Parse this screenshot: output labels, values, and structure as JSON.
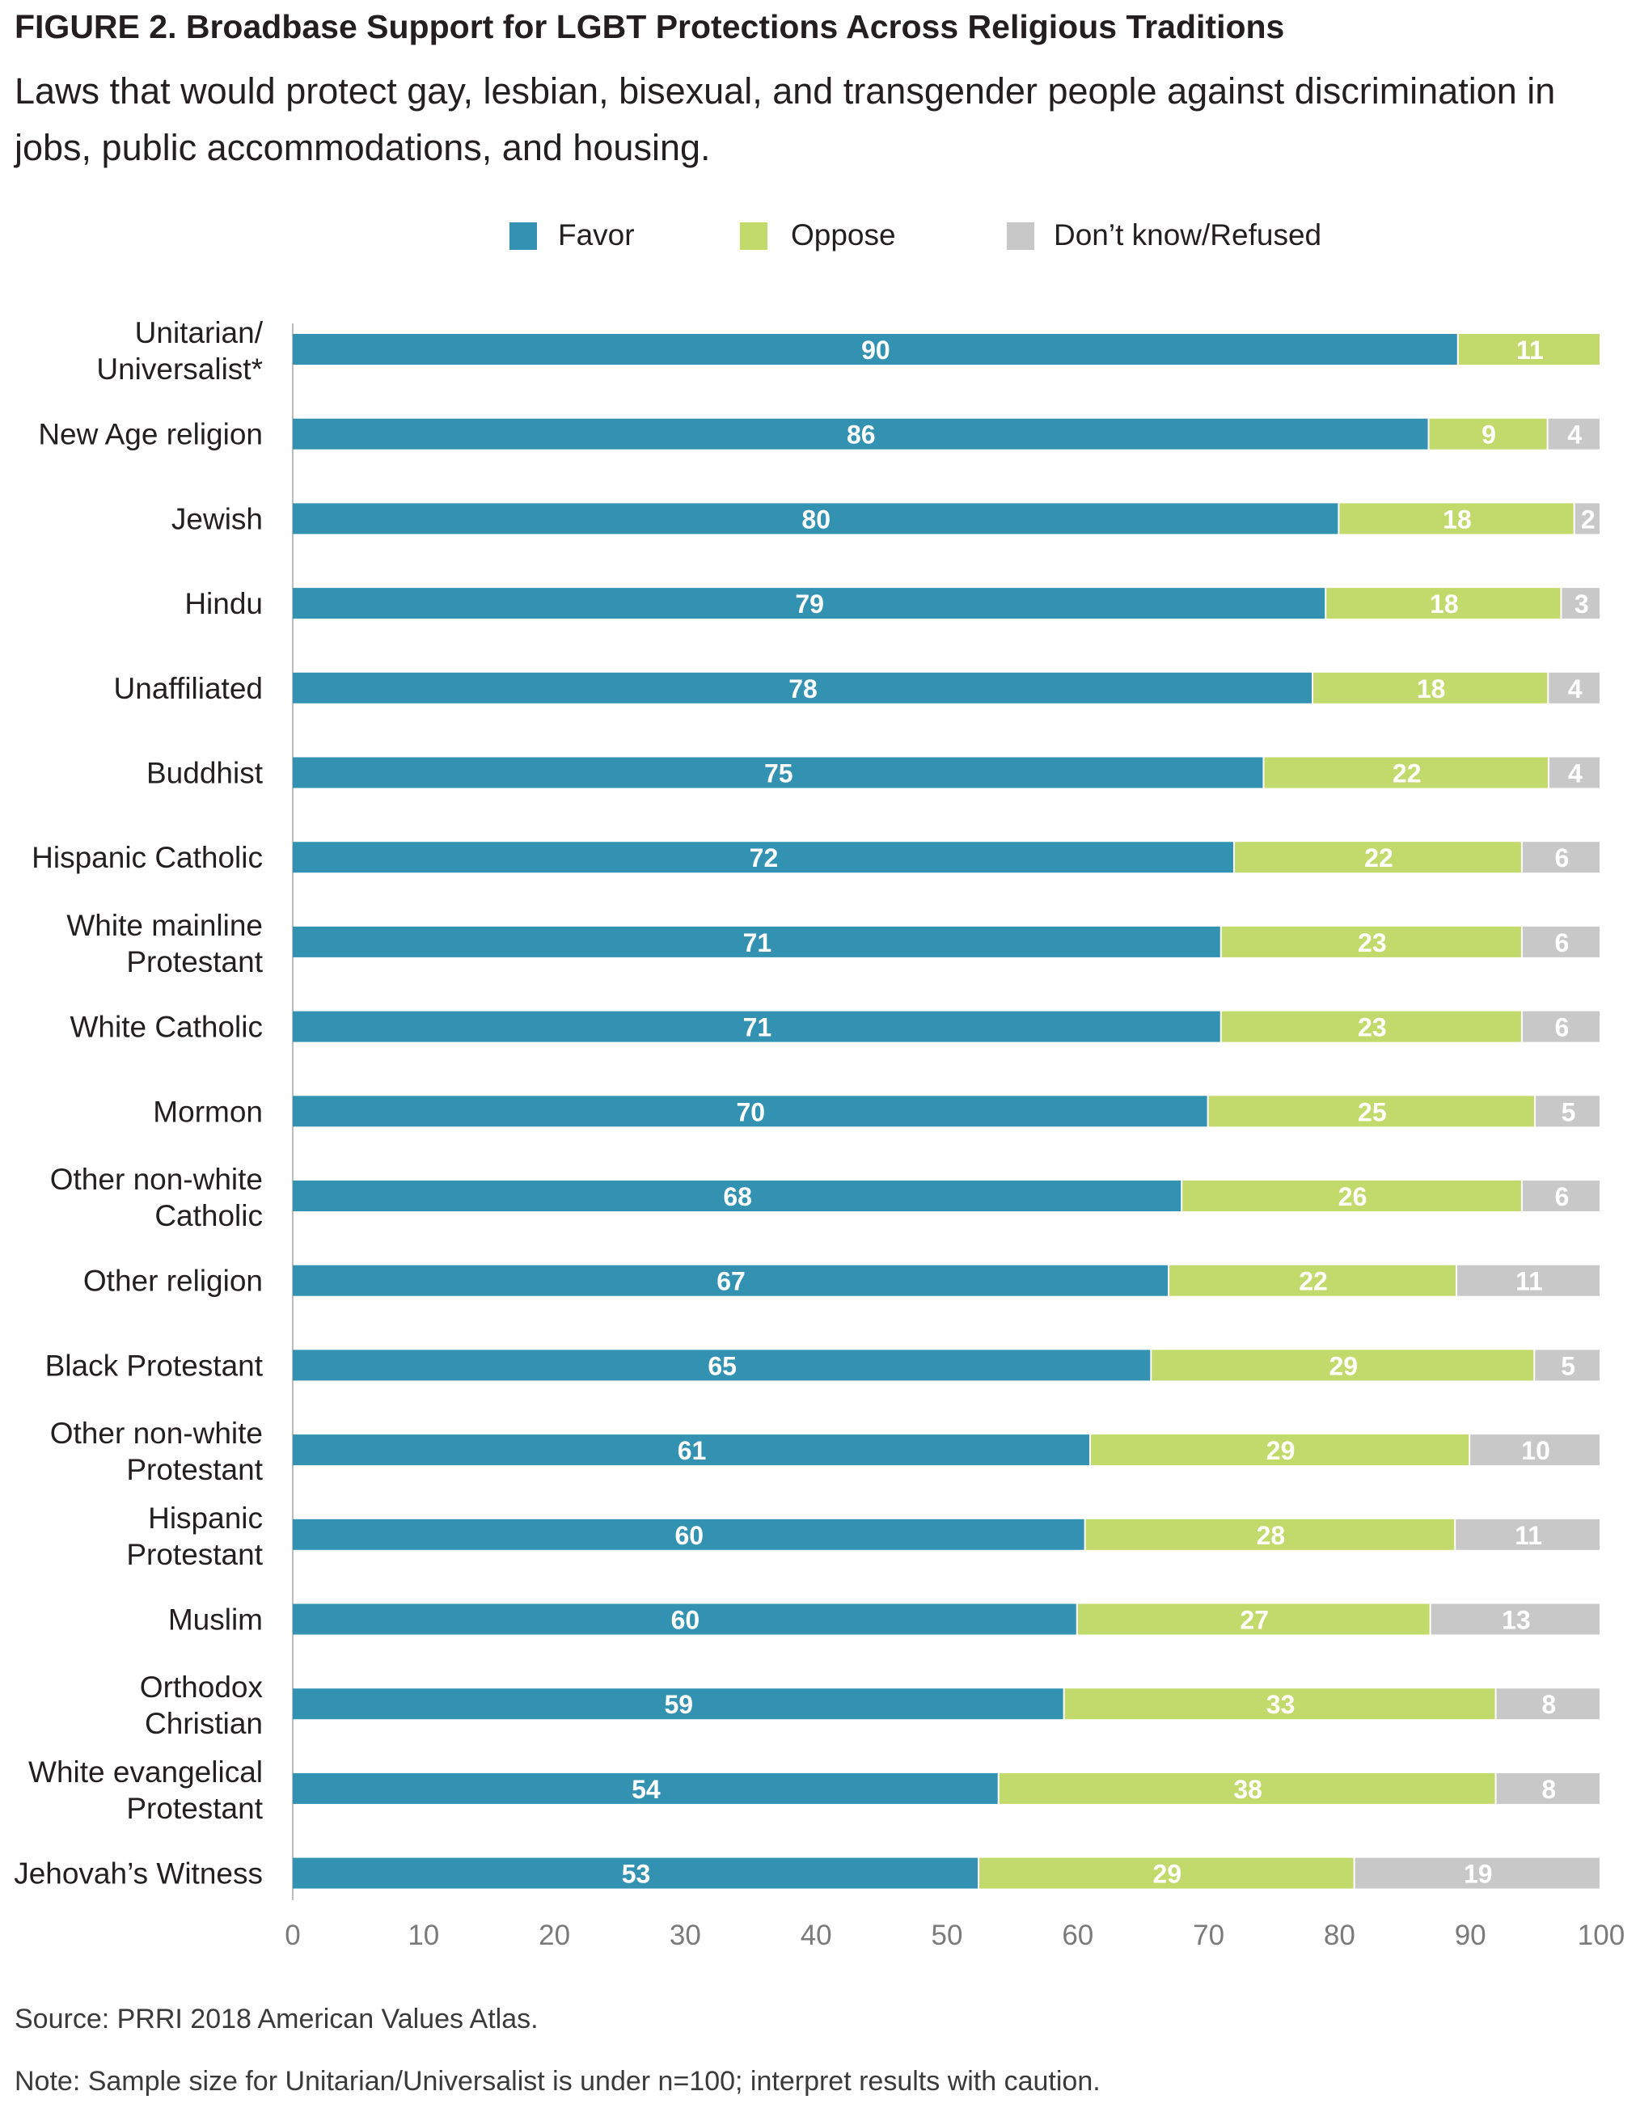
{
  "figure": {
    "title": "FIGURE 2.  Broadbase Support for LGBT Protections Across Religious Traditions",
    "subtitle": "Laws that would protect gay, lesbian, bisexual, and transgender people against discrimination in jobs, public accommodations, and housing.",
    "source": "Source: PRRI 2018 American Values Atlas.",
    "note": "Note: Sample size for Unitarian/Universalist is under n=100; interpret results with caution."
  },
  "chart_data": {
    "type": "bar",
    "orientation": "horizontal",
    "stacked": true,
    "categories": [
      [
        "Unitarian/",
        "Universalist*"
      ],
      [
        "New Age religion"
      ],
      [
        "Jewish"
      ],
      [
        "Hindu"
      ],
      [
        "Unaffiliated"
      ],
      [
        "Buddhist"
      ],
      [
        "Hispanic Catholic"
      ],
      [
        "White mainline",
        "Protestant"
      ],
      [
        "White Catholic"
      ],
      [
        "Mormon"
      ],
      [
        "Other non-white",
        "Catholic"
      ],
      [
        "Other religion"
      ],
      [
        "Black Protestant"
      ],
      [
        "Other non-white",
        "Protestant"
      ],
      [
        "Hispanic",
        "Protestant"
      ],
      [
        "Muslim"
      ],
      [
        "Orthodox",
        "Christian"
      ],
      [
        "White evangelical",
        "Protestant"
      ],
      [
        "Jehovah’s Witness"
      ]
    ],
    "series": [
      {
        "name": "Favor",
        "color": "#3392b1",
        "values": [
          90,
          86,
          80,
          79,
          78,
          75,
          72,
          71,
          71,
          70,
          68,
          67,
          65,
          61,
          60,
          60,
          59,
          54,
          53
        ]
      },
      {
        "name": "Oppose",
        "color": "#c2d96b",
        "values": [
          11,
          9,
          18,
          18,
          18,
          22,
          22,
          23,
          23,
          25,
          26,
          22,
          29,
          29,
          28,
          27,
          33,
          38,
          29
        ]
      },
      {
        "name": "Don’t know/Refused",
        "color": "#c8c8c8",
        "values": [
          null,
          4,
          2,
          3,
          4,
          4,
          6,
          6,
          6,
          5,
          6,
          11,
          5,
          10,
          11,
          13,
          8,
          8,
          19
        ]
      }
    ],
    "xticks": [
      0,
      10,
      20,
      30,
      40,
      50,
      60,
      70,
      80,
      90,
      100
    ],
    "xlim": [
      0,
      100
    ],
    "legend_position": "top",
    "grid": false
  }
}
